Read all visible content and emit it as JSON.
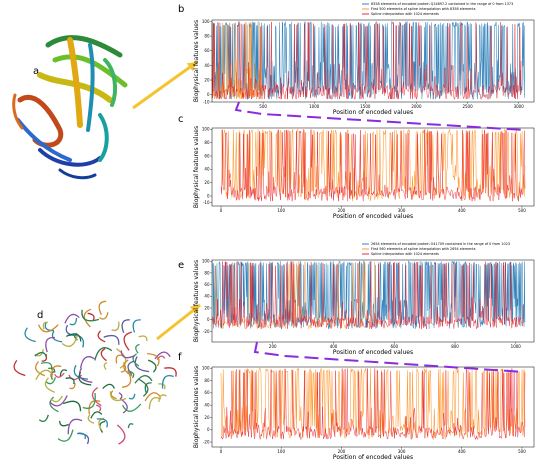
{
  "figure": {
    "panel_labels": {
      "a": "a",
      "b": "b",
      "c": "c",
      "d": "d",
      "e": "e",
      "f": "f"
    },
    "colors": {
      "encoded": "#1f77b4",
      "spline_first": "#ff8c1a",
      "spline_full": "#e8141e",
      "dash": "#8a2be2",
      "arrow": "#f4c430"
    },
    "protein_a_icon": "protein-ribbon-illustration",
    "protein_d_icon": "protein-complex-illustration"
  },
  "chart_data": [
    {
      "id": "b",
      "type": "line",
      "xlabel": "Position of encoded values",
      "ylabel": "Biophysical features values",
      "xlim": [
        0,
        3150
      ],
      "ylim": [
        -10,
        102
      ],
      "xticks": [
        500,
        1000,
        1500,
        2000,
        2500,
        3000
      ],
      "yticks": [
        -10,
        0,
        20,
        40,
        60,
        80,
        100
      ],
      "legend_position": "top-right",
      "series": [
        {
          "name": "8358 elements of encoded protein Q14897.2 contained in the range of 0 from 1373",
          "n_points": 8358,
          "color": "#1f77b4"
        },
        {
          "name": "First 500 elements of spline interpolation with 8358 elements",
          "n_points": 500,
          "color": "#ff8c1a"
        },
        {
          "name": "Spline interpolation with 1024 elements",
          "n_points": 1024,
          "color": "#e8141e"
        }
      ]
    },
    {
      "id": "c",
      "type": "line",
      "xlabel": "Position of encoded values",
      "ylabel": "Biophysical features values",
      "xlim": [
        -15,
        520
      ],
      "ylim": [
        -15,
        102
      ],
      "xticks": [
        0,
        100,
        200,
        300,
        400,
        500
      ],
      "yticks": [
        -10,
        0,
        20,
        40,
        60,
        80,
        100
      ],
      "series": [
        {
          "name": "",
          "n_points": 500,
          "color": "#ff8c1a"
        },
        {
          "name": "",
          "n_points": 500,
          "color": "#e8141e"
        }
      ]
    },
    {
      "id": "e",
      "type": "line",
      "xlabel": "Position of encoded values",
      "ylabel": "Biophysical features values",
      "xlim": [
        0,
        1060
      ],
      "ylim": [
        -38,
        102
      ],
      "xticks": [
        200,
        400,
        600,
        800,
        1000
      ],
      "yticks": [
        -20,
        0,
        20,
        40,
        60,
        80,
        100
      ],
      "legend_position": "top-right",
      "series": [
        {
          "name": "2654 elements of encoded protein O41709 contained in the range of 0 from 1023",
          "n_points": 2654,
          "color": "#1f77b4"
        },
        {
          "name": "First 560 elements of spline interpolation with 2654 elements",
          "n_points": 560,
          "color": "#ff8c1a"
        },
        {
          "name": "Spline interpolation with 1024 elements",
          "n_points": 1024,
          "color": "#e8141e"
        }
      ]
    },
    {
      "id": "f",
      "type": "line",
      "xlabel": "Position of encoded values",
      "ylabel": "Biophysical features values",
      "xlim": [
        -15,
        520
      ],
      "ylim": [
        -28,
        102
      ],
      "xticks": [
        0,
        100,
        200,
        300,
        400,
        500
      ],
      "yticks": [
        -20,
        0,
        20,
        40,
        60,
        80,
        100
      ],
      "series": [
        {
          "name": "",
          "n_points": 500,
          "color": "#ff8c1a"
        },
        {
          "name": "",
          "n_points": 500,
          "color": "#e8141e"
        }
      ]
    }
  ]
}
